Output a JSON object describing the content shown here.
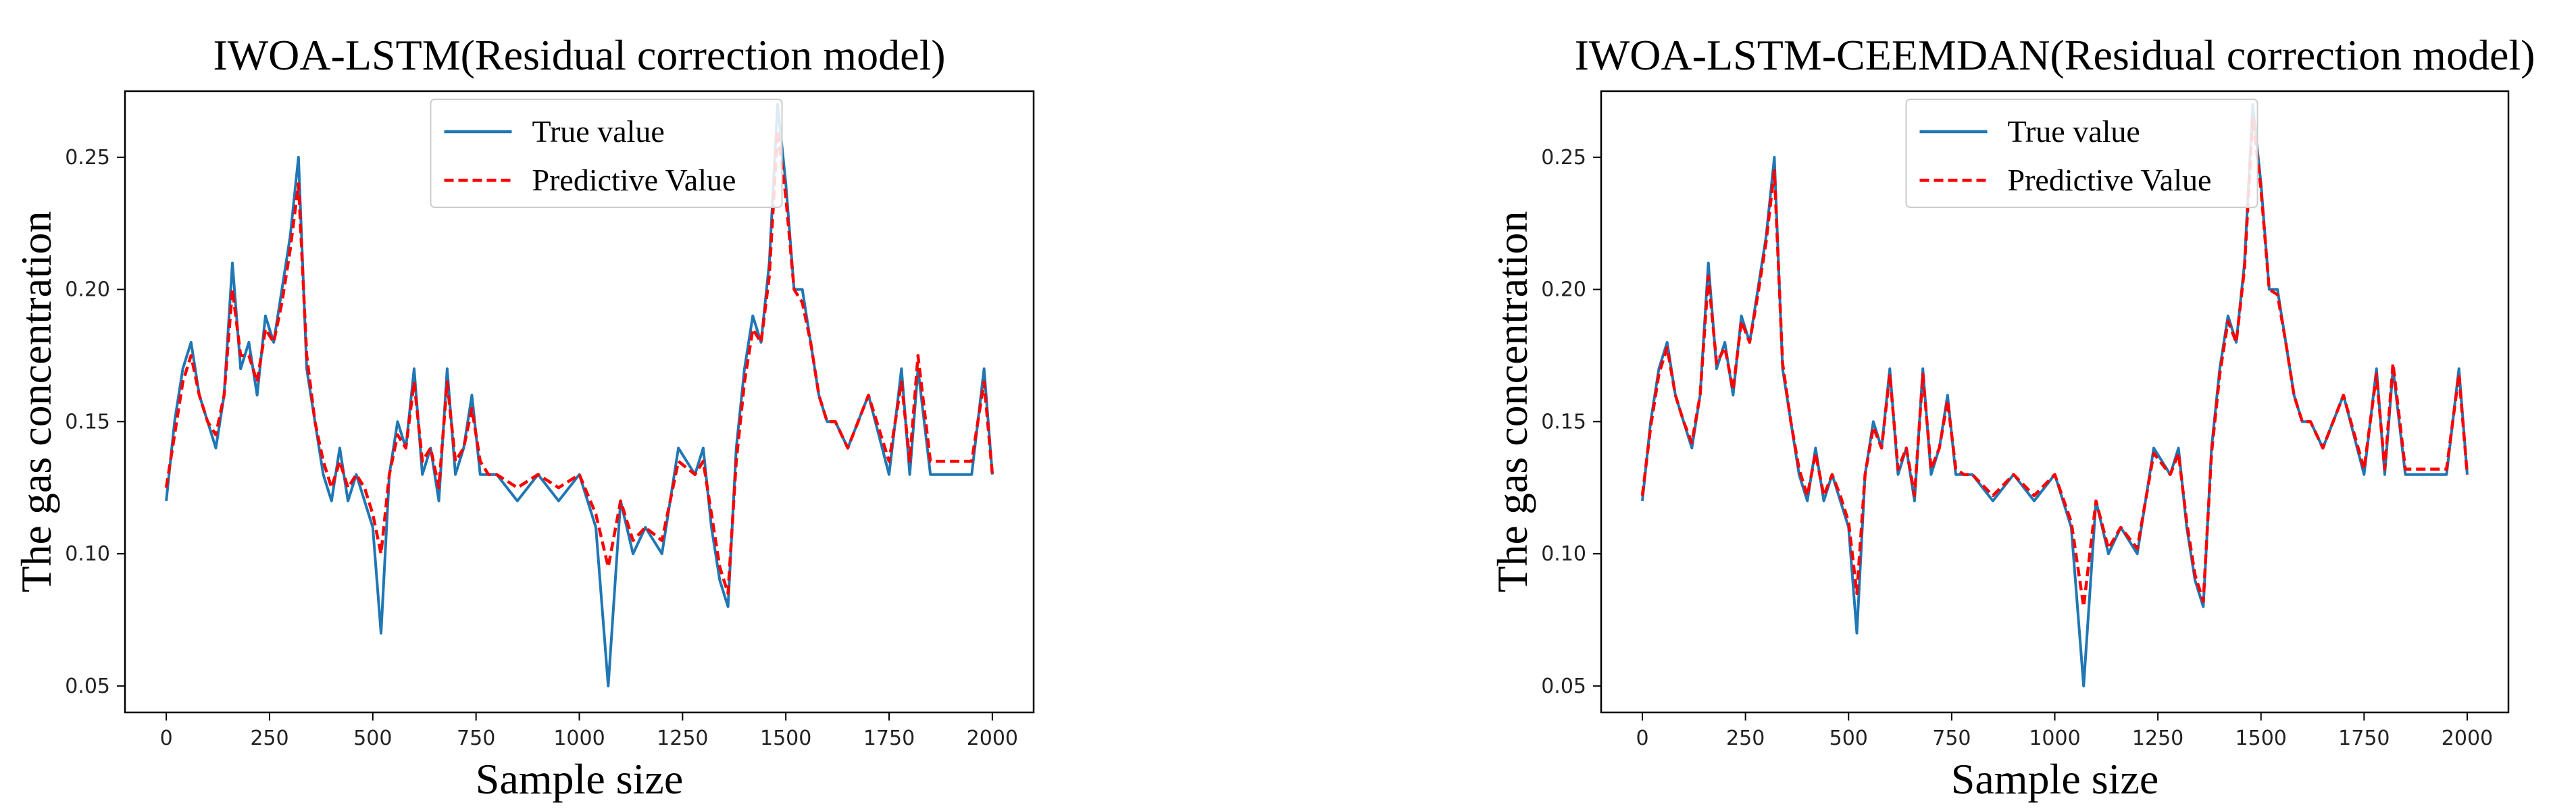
{
  "colors": {
    "true_series": "#1f77b4",
    "pred_series": "#ff0000"
  },
  "chart_data": [
    {
      "type": "line",
      "title": "IWOA-LSTM(Residual correction model)",
      "xlabel": "Sample size",
      "ylabel": "The gas concentration",
      "xlim": [
        -100,
        2100
      ],
      "ylim": [
        0.04,
        0.275
      ],
      "xticks": [
        0,
        250,
        500,
        750,
        1000,
        1250,
        1500,
        1750,
        2000
      ],
      "xtick_labels": [
        "0",
        "250",
        "500",
        "750",
        "1000",
        "1250",
        "1500",
        "1750",
        "2000"
      ],
      "yticks": [
        0.05,
        0.1,
        0.15,
        0.2,
        0.25
      ],
      "ytick_labels": [
        "0.05",
        "0.10",
        "0.15",
        "0.20",
        "0.25"
      ],
      "legend": {
        "placement": "upper-center",
        "entries": [
          "True value",
          "Predictive Value"
        ]
      },
      "series": [
        {
          "name": "True value",
          "style": "solid",
          "x": [
            0,
            20,
            40,
            60,
            80,
            100,
            120,
            140,
            160,
            180,
            200,
            220,
            240,
            260,
            280,
            300,
            320,
            340,
            360,
            380,
            400,
            420,
            440,
            460,
            480,
            500,
            520,
            540,
            560,
            580,
            600,
            620,
            640,
            660,
            680,
            700,
            720,
            740,
            760,
            780,
            800,
            850,
            900,
            950,
            1000,
            1040,
            1070,
            1100,
            1130,
            1160,
            1200,
            1240,
            1280,
            1300,
            1320,
            1340,
            1360,
            1380,
            1400,
            1420,
            1440,
            1460,
            1480,
            1500,
            1520,
            1540,
            1560,
            1580,
            1600,
            1620,
            1650,
            1700,
            1750,
            1780,
            1800,
            1820,
            1850,
            1900,
            1950,
            1980,
            2000
          ],
          "y": [
            0.12,
            0.15,
            0.17,
            0.18,
            0.16,
            0.15,
            0.14,
            0.16,
            0.21,
            0.17,
            0.18,
            0.16,
            0.19,
            0.18,
            0.2,
            0.22,
            0.25,
            0.17,
            0.15,
            0.13,
            0.12,
            0.14,
            0.12,
            0.13,
            0.12,
            0.11,
            0.07,
            0.13,
            0.15,
            0.14,
            0.17,
            0.13,
            0.14,
            0.12,
            0.17,
            0.13,
            0.14,
            0.16,
            0.13,
            0.13,
            0.13,
            0.12,
            0.13,
            0.12,
            0.13,
            0.11,
            0.05,
            0.12,
            0.1,
            0.11,
            0.1,
            0.14,
            0.13,
            0.14,
            0.11,
            0.09,
            0.08,
            0.14,
            0.17,
            0.19,
            0.18,
            0.21,
            0.27,
            0.24,
            0.2,
            0.2,
            0.18,
            0.16,
            0.15,
            0.15,
            0.14,
            0.16,
            0.13,
            0.17,
            0.13,
            0.17,
            0.13,
            0.13,
            0.13,
            0.17,
            0.13
          ]
        },
        {
          "name": "Predictive Value",
          "style": "dashed",
          "x": [
            0,
            20,
            40,
            60,
            80,
            100,
            120,
            140,
            160,
            180,
            200,
            220,
            240,
            260,
            280,
            300,
            320,
            340,
            360,
            380,
            400,
            420,
            440,
            460,
            480,
            500,
            520,
            540,
            560,
            580,
            600,
            620,
            640,
            660,
            680,
            700,
            720,
            740,
            760,
            780,
            800,
            850,
            900,
            950,
            1000,
            1040,
            1070,
            1100,
            1130,
            1160,
            1200,
            1240,
            1280,
            1300,
            1320,
            1340,
            1360,
            1380,
            1400,
            1420,
            1440,
            1460,
            1480,
            1500,
            1520,
            1540,
            1560,
            1580,
            1600,
            1620,
            1650,
            1700,
            1750,
            1780,
            1800,
            1820,
            1850,
            1900,
            1950,
            1980,
            2000
          ],
          "y": [
            0.125,
            0.145,
            0.165,
            0.175,
            0.16,
            0.15,
            0.145,
            0.16,
            0.2,
            0.175,
            0.175,
            0.165,
            0.185,
            0.18,
            0.195,
            0.215,
            0.24,
            0.175,
            0.15,
            0.135,
            0.125,
            0.135,
            0.125,
            0.13,
            0.125,
            0.115,
            0.1,
            0.13,
            0.145,
            0.14,
            0.165,
            0.135,
            0.14,
            0.125,
            0.165,
            0.135,
            0.14,
            0.155,
            0.135,
            0.13,
            0.13,
            0.125,
            0.13,
            0.125,
            0.13,
            0.115,
            0.095,
            0.12,
            0.105,
            0.11,
            0.105,
            0.135,
            0.13,
            0.135,
            0.115,
            0.095,
            0.085,
            0.135,
            0.165,
            0.185,
            0.18,
            0.205,
            0.26,
            0.235,
            0.2,
            0.195,
            0.18,
            0.16,
            0.15,
            0.15,
            0.14,
            0.16,
            0.135,
            0.165,
            0.135,
            0.175,
            0.135,
            0.135,
            0.135,
            0.165,
            0.13
          ]
        }
      ]
    },
    {
      "type": "line",
      "title": "IWOA-LSTM-CEEMDAN(Residual correction model)",
      "xlabel": "Sample size",
      "ylabel": "The gas concentration",
      "xlim": [
        -100,
        2100
      ],
      "ylim": [
        0.04,
        0.275
      ],
      "xticks": [
        0,
        250,
        500,
        750,
        1000,
        1250,
        1500,
        1750,
        2000
      ],
      "xtick_labels": [
        "0",
        "250",
        "500",
        "750",
        "1000",
        "1250",
        "1500",
        "1750",
        "2000"
      ],
      "yticks": [
        0.05,
        0.1,
        0.15,
        0.2,
        0.25
      ],
      "ytick_labels": [
        "0.05",
        "0.10",
        "0.15",
        "0.20",
        "0.25"
      ],
      "legend": {
        "placement": "upper-center",
        "entries": [
          "True value",
          "Predictive Value"
        ]
      },
      "series": [
        {
          "name": "True value",
          "style": "solid",
          "x": [
            0,
            20,
            40,
            60,
            80,
            100,
            120,
            140,
            160,
            180,
            200,
            220,
            240,
            260,
            280,
            300,
            320,
            340,
            360,
            380,
            400,
            420,
            440,
            460,
            480,
            500,
            520,
            540,
            560,
            580,
            600,
            620,
            640,
            660,
            680,
            700,
            720,
            740,
            760,
            780,
            800,
            850,
            900,
            950,
            1000,
            1040,
            1070,
            1100,
            1130,
            1160,
            1200,
            1240,
            1280,
            1300,
            1320,
            1340,
            1360,
            1380,
            1400,
            1420,
            1440,
            1460,
            1480,
            1500,
            1520,
            1540,
            1560,
            1580,
            1600,
            1620,
            1650,
            1700,
            1750,
            1780,
            1800,
            1820,
            1850,
            1900,
            1950,
            1980,
            2000
          ],
          "y": [
            0.12,
            0.15,
            0.17,
            0.18,
            0.16,
            0.15,
            0.14,
            0.16,
            0.21,
            0.17,
            0.18,
            0.16,
            0.19,
            0.18,
            0.2,
            0.22,
            0.25,
            0.17,
            0.15,
            0.13,
            0.12,
            0.14,
            0.12,
            0.13,
            0.12,
            0.11,
            0.07,
            0.13,
            0.15,
            0.14,
            0.17,
            0.13,
            0.14,
            0.12,
            0.17,
            0.13,
            0.14,
            0.16,
            0.13,
            0.13,
            0.13,
            0.12,
            0.13,
            0.12,
            0.13,
            0.11,
            0.05,
            0.12,
            0.1,
            0.11,
            0.1,
            0.14,
            0.13,
            0.14,
            0.11,
            0.09,
            0.08,
            0.14,
            0.17,
            0.19,
            0.18,
            0.21,
            0.27,
            0.24,
            0.2,
            0.2,
            0.18,
            0.16,
            0.15,
            0.15,
            0.14,
            0.16,
            0.13,
            0.17,
            0.13,
            0.17,
            0.13,
            0.13,
            0.13,
            0.17,
            0.13
          ]
        },
        {
          "name": "Predictive Value",
          "style": "dashed",
          "x": [
            0,
            20,
            40,
            60,
            80,
            100,
            120,
            140,
            160,
            180,
            200,
            220,
            240,
            260,
            280,
            300,
            320,
            340,
            360,
            380,
            400,
            420,
            440,
            460,
            480,
            500,
            520,
            540,
            560,
            580,
            600,
            620,
            640,
            660,
            680,
            700,
            720,
            740,
            760,
            780,
            800,
            850,
            900,
            950,
            1000,
            1040,
            1070,
            1100,
            1130,
            1160,
            1200,
            1240,
            1280,
            1300,
            1320,
            1340,
            1360,
            1380,
            1400,
            1420,
            1440,
            1460,
            1480,
            1500,
            1520,
            1540,
            1560,
            1580,
            1600,
            1620,
            1650,
            1700,
            1750,
            1780,
            1800,
            1820,
            1850,
            1900,
            1950,
            1980,
            2000
          ],
          "y": [
            0.122,
            0.148,
            0.168,
            0.178,
            0.16,
            0.15,
            0.142,
            0.16,
            0.205,
            0.172,
            0.178,
            0.162,
            0.188,
            0.18,
            0.198,
            0.218,
            0.245,
            0.172,
            0.15,
            0.132,
            0.122,
            0.138,
            0.122,
            0.13,
            0.122,
            0.112,
            0.085,
            0.13,
            0.148,
            0.14,
            0.168,
            0.132,
            0.14,
            0.122,
            0.168,
            0.132,
            0.14,
            0.158,
            0.132,
            0.13,
            0.13,
            0.122,
            0.13,
            0.122,
            0.13,
            0.112,
            0.08,
            0.12,
            0.102,
            0.11,
            0.102,
            0.138,
            0.13,
            0.138,
            0.112,
            0.092,
            0.082,
            0.138,
            0.168,
            0.188,
            0.18,
            0.208,
            0.265,
            0.238,
            0.2,
            0.198,
            0.18,
            0.16,
            0.15,
            0.15,
            0.14,
            0.16,
            0.132,
            0.168,
            0.132,
            0.172,
            0.132,
            0.132,
            0.132,
            0.168,
            0.13
          ]
        }
      ]
    }
  ]
}
